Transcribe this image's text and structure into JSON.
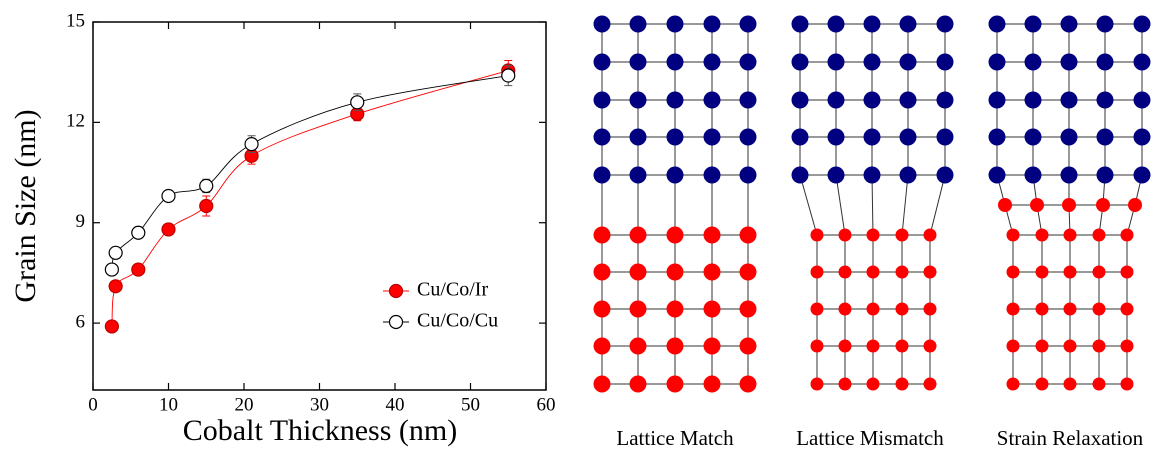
{
  "chart_data": {
    "type": "line",
    "x_label": "Cobalt Thickness (nm)",
    "y_label": "Grain Size (nm)",
    "x": [
      2.5,
      3,
      6,
      10,
      15,
      21,
      35,
      55
    ],
    "series": [
      {
        "name": "Cu/Co/Ir",
        "color": "#ff0000",
        "marker": "filled",
        "values": [
          5.9,
          7.1,
          7.6,
          8.8,
          9.5,
          11.0,
          12.25,
          13.55
        ],
        "errors": [
          0.1,
          0.15,
          0.1,
          0.1,
          0.3,
          0.25,
          0.2,
          0.3
        ]
      },
      {
        "name": "Cu/Co/Cu",
        "color": "#000000",
        "marker": "open",
        "values": [
          7.6,
          8.1,
          8.7,
          9.8,
          10.1,
          11.35,
          12.6,
          13.4
        ],
        "errors": [
          0.1,
          0.1,
          0.1,
          0.1,
          0.2,
          0.25,
          0.25,
          0.3
        ]
      }
    ],
    "xlim": [
      0,
      60
    ],
    "xticks": [
      0,
      10,
      20,
      30,
      40,
      50,
      60
    ],
    "ylim": [
      4,
      15
    ],
    "yticks": [
      6,
      9,
      12,
      15
    ],
    "legend": "lower right"
  },
  "diagram": {
    "panels": [
      {
        "label": "Lattice Match"
      },
      {
        "label": "Lattice Mismatch"
      },
      {
        "label": "Strain Relaxation"
      }
    ]
  }
}
